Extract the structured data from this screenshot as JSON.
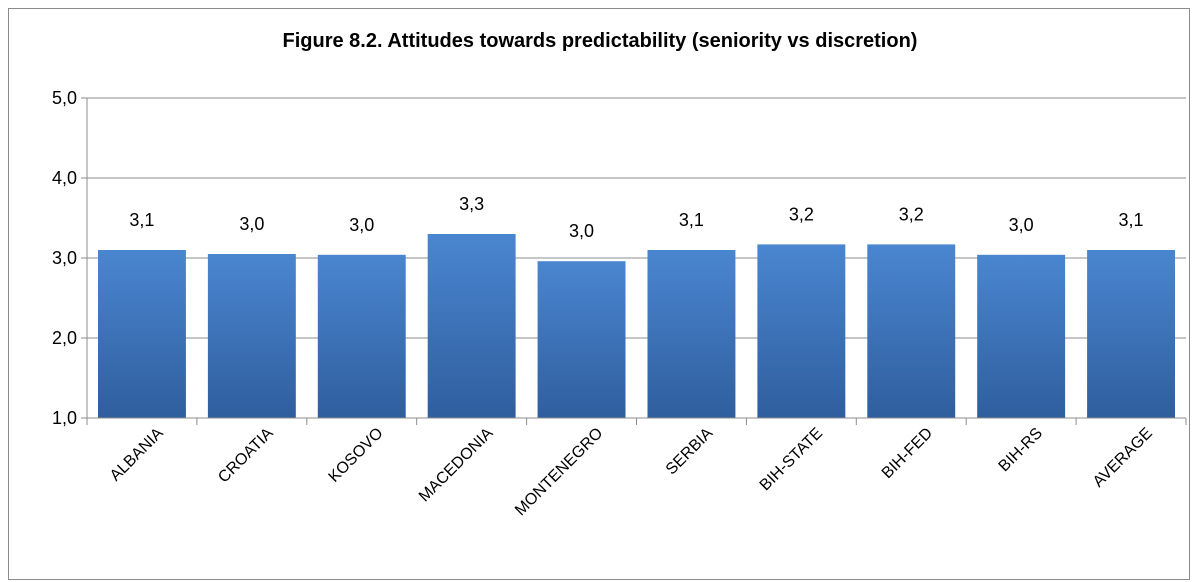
{
  "chart_data": {
    "type": "bar",
    "title": "Figure 8.2. Attitudes towards predictability (seniority vs discretion)",
    "categories": [
      "ALBANIA",
      "CROATIA",
      "KOSOVO",
      "MACEDONIA",
      "MONTENEGRO",
      "SERBIA",
      "BIH-STATE",
      "BIH-FED",
      "BIH-RS",
      "AVERAGE"
    ],
    "values": [
      3.1,
      3.05,
      3.04,
      3.3,
      2.96,
      3.1,
      3.17,
      3.17,
      3.04,
      3.1
    ],
    "data_labels": [
      "3,1",
      "3,0",
      "3,0",
      "3,3",
      "3,0",
      "3,1",
      "3,2",
      "3,2",
      "3,0",
      "3,1"
    ],
    "yticks": [
      1,
      2,
      3,
      4,
      5
    ],
    "ytick_labels": [
      "1,0",
      "2,0",
      "3,0",
      "4,0",
      "5,0"
    ],
    "ylim": [
      1,
      5
    ],
    "grid": true,
    "legend": "none",
    "colors": {
      "bar_top": "#4a86d0",
      "bar_bottom": "#2f5e9e",
      "grid": "#8c8c8c",
      "axis": "#8c8c8c"
    }
  }
}
